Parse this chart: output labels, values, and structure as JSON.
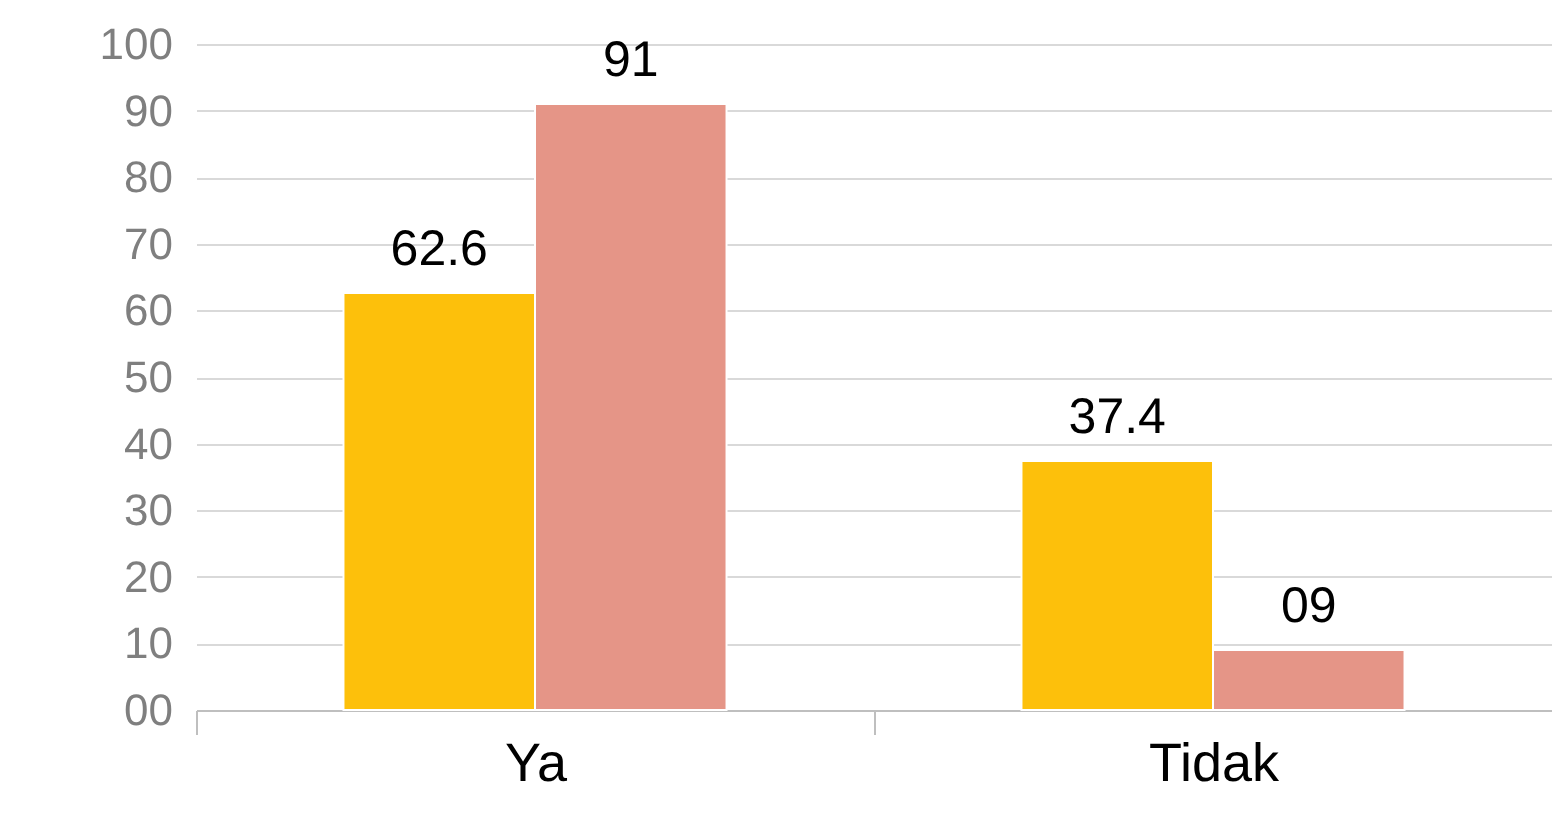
{
  "chart_data": {
    "type": "bar",
    "categories": [
      "Ya",
      "Tidak"
    ],
    "series": [
      {
        "color": "#fdc00b",
        "values": [
          62.6,
          37.4
        ],
        "value_labels": [
          "62.6",
          "37.4"
        ]
      },
      {
        "color": "#e59587",
        "values": [
          91,
          9
        ],
        "value_labels": [
          "91",
          "09"
        ]
      }
    ],
    "ylim": [
      0,
      100
    ],
    "yticks": [
      {
        "value": 0,
        "label": "00"
      },
      10,
      20,
      30,
      40,
      50,
      60,
      70,
      80,
      90,
      100
    ],
    "grid": "y",
    "legend": false
  }
}
